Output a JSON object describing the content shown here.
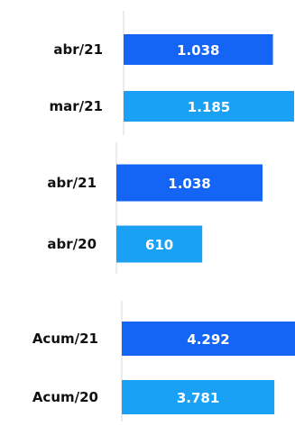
{
  "colors": {
    "dark_blue": "#1464f5",
    "light_blue": "#1aa1f5",
    "axis": "#d9d9d9",
    "category_text": "#111111",
    "value_text": "#ffffff"
  },
  "chart_data": [
    {
      "type": "bar",
      "orientation": "horizontal",
      "categories": [
        "abr/21",
        "mar/21"
      ],
      "values": [
        1038,
        1185
      ],
      "value_labels": [
        "1.038",
        "1.185"
      ],
      "bar_colors": [
        "#1464f5",
        "#1aa1f5"
      ],
      "xlim": [
        0,
        1185
      ],
      "grid": false
    },
    {
      "type": "bar",
      "orientation": "horizontal",
      "categories": [
        "abr/21",
        "abr/20"
      ],
      "values": [
        1038,
        610
      ],
      "value_labels": [
        "1.038",
        "610"
      ],
      "bar_colors": [
        "#1464f5",
        "#1aa1f5"
      ],
      "xlim": [
        0,
        1038
      ],
      "grid": false
    },
    {
      "type": "bar",
      "orientation": "horizontal",
      "categories": [
        "Acum/21",
        "Acum/20"
      ],
      "values": [
        4292,
        3781
      ],
      "value_labels": [
        "4.292",
        "3.781"
      ],
      "bar_colors": [
        "#1464f5",
        "#1aa1f5"
      ],
      "xlim": [
        0,
        4292
      ],
      "grid": false
    }
  ]
}
